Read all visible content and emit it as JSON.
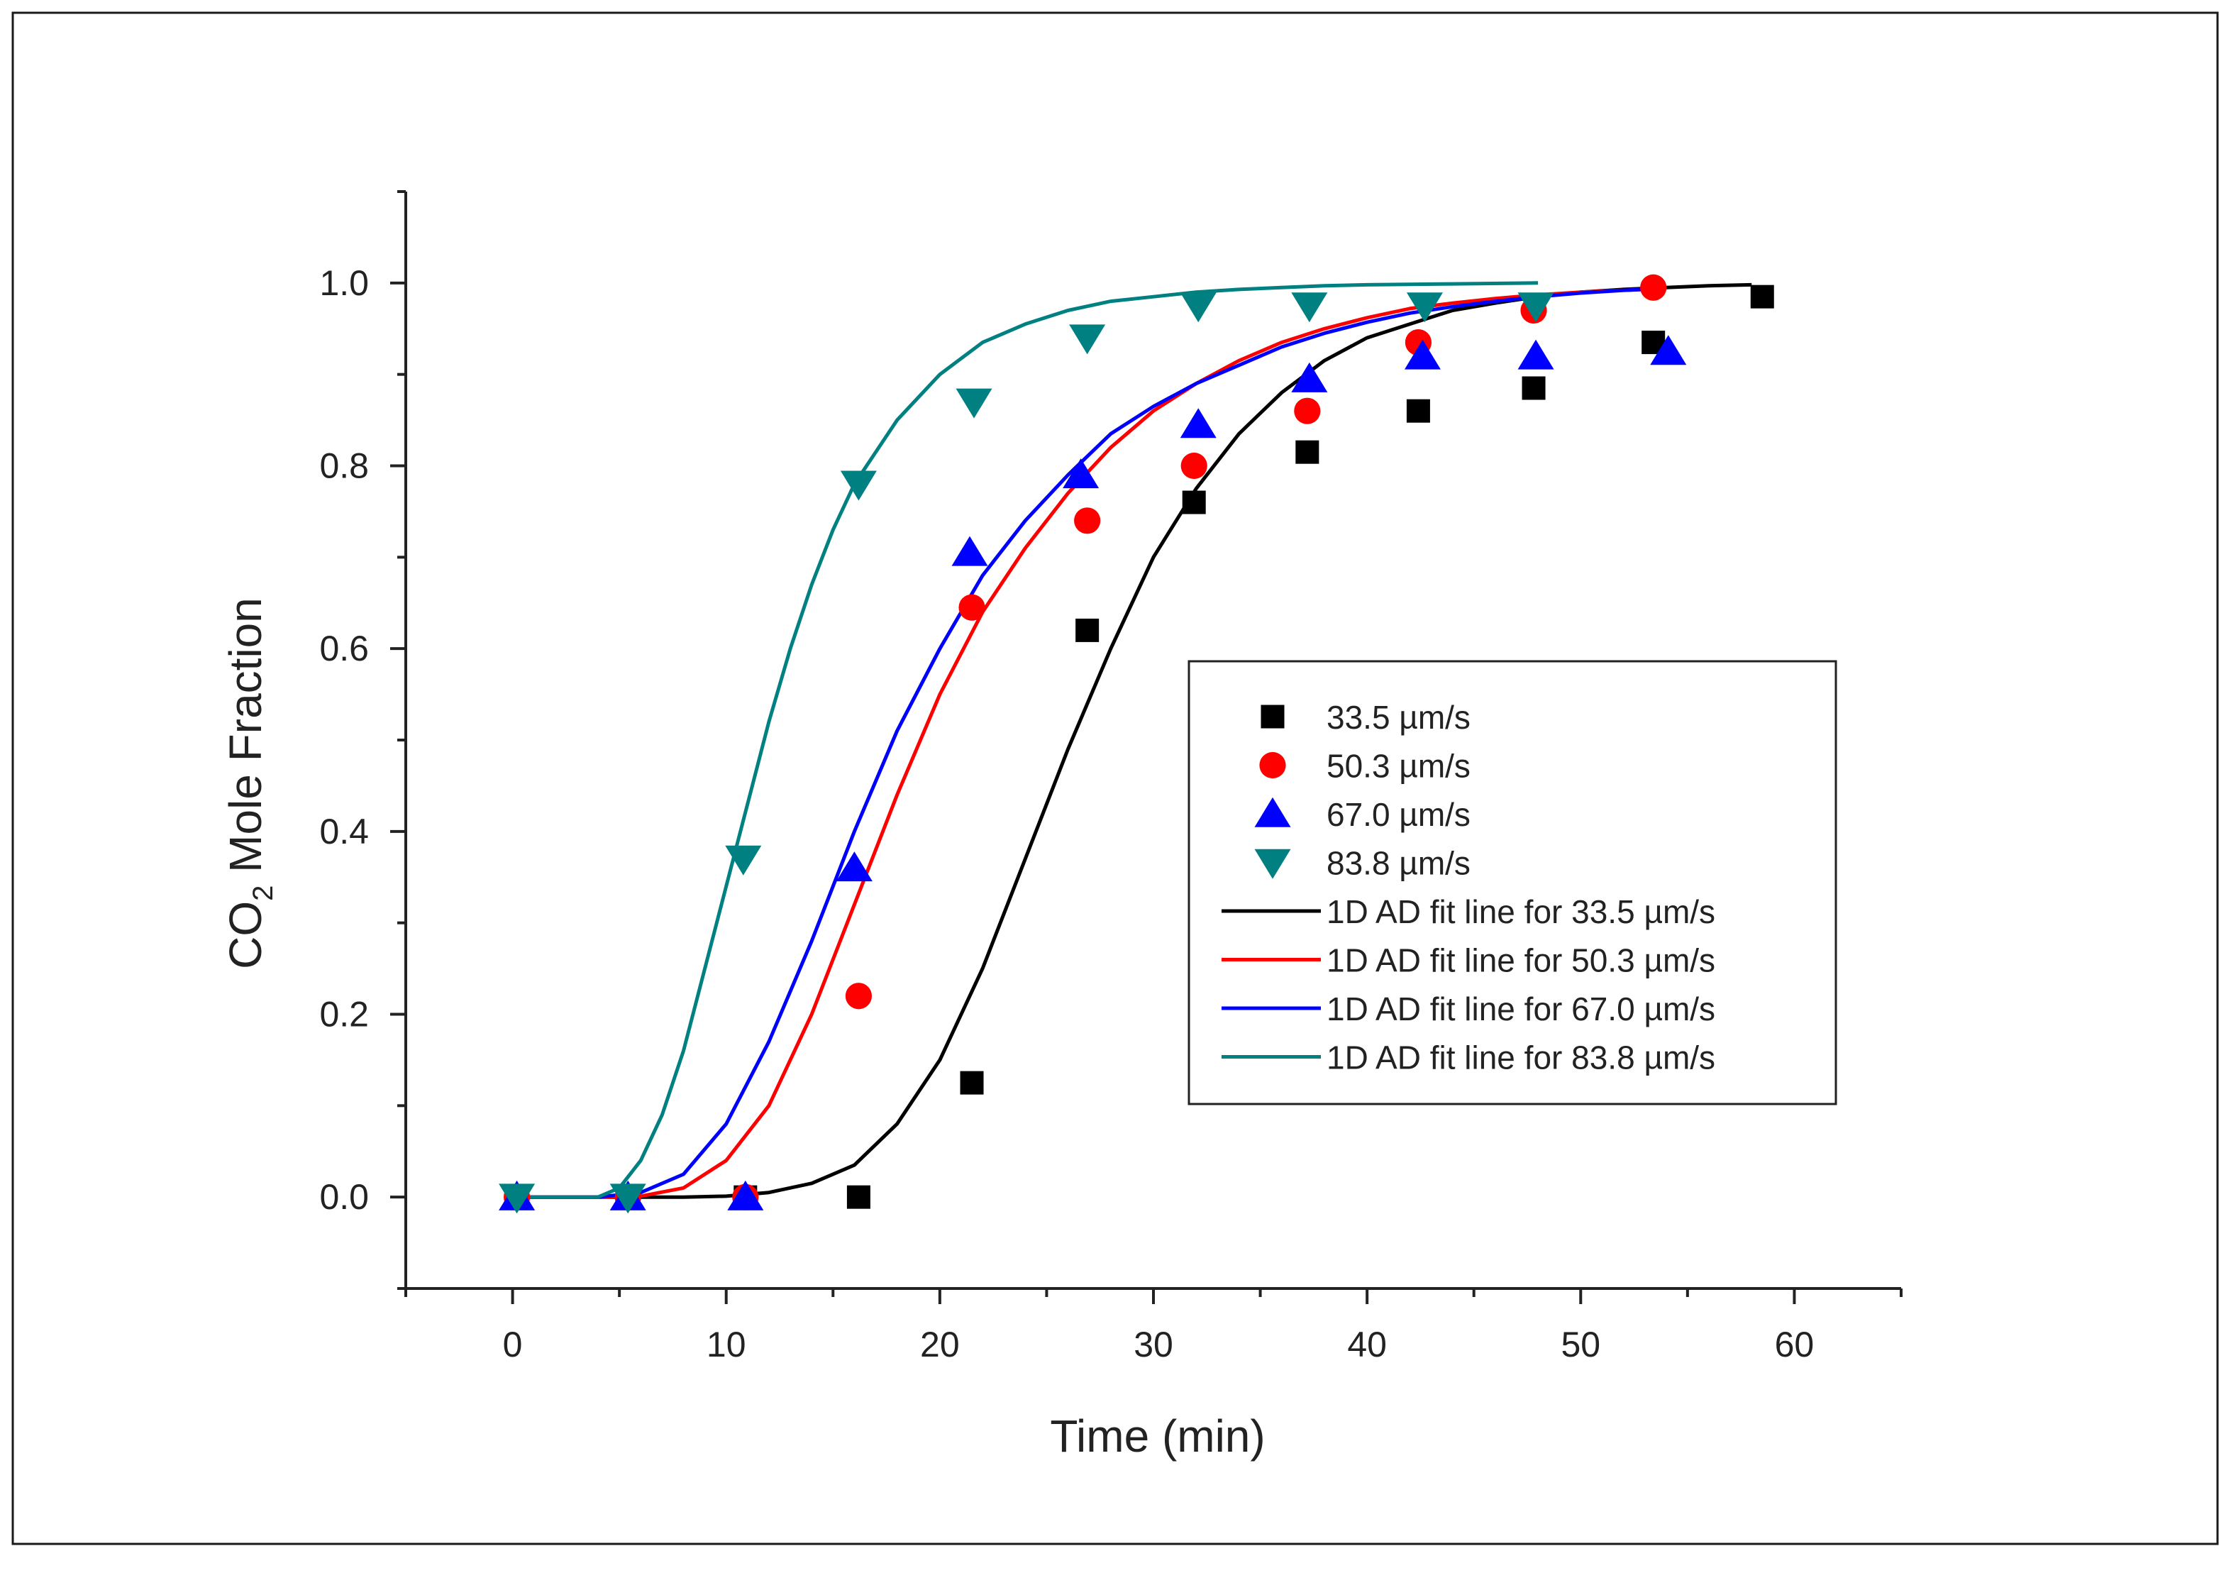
{
  "chart_data": {
    "type": "scatter",
    "title": "",
    "xlabel": "Time (min)",
    "ylabel_main": "CO",
    "ylabel_sub": "2",
    "ylabel_rest": " Mole Fraction",
    "xlim": [
      -5,
      65
    ],
    "ylim": [
      -0.1,
      1.1
    ],
    "x_ticks": [
      0,
      10,
      20,
      30,
      40,
      50,
      60
    ],
    "x_tick_labels": [
      "0",
      "10",
      "20",
      "30",
      "40",
      "50",
      "60"
    ],
    "y_ticks": [
      0.0,
      0.2,
      0.4,
      0.6,
      0.8,
      1.0
    ],
    "y_tick_labels": [
      "0.0",
      "0.2",
      "0.4",
      "0.6",
      "0.8",
      "1.0"
    ],
    "grid": false,
    "legend_position": "center-right",
    "series": [
      {
        "name": "33.5 µm/s",
        "marker": "square",
        "color": "#000000",
        "x": [
          0.2,
          5.4,
          10.9,
          16.2,
          21.5,
          26.9,
          31.9,
          37.2,
          42.4,
          47.8,
          53.4,
          58.5
        ],
        "y": [
          0.0,
          0.0,
          0.0,
          0.0,
          0.125,
          0.62,
          0.76,
          0.815,
          0.86,
          0.885,
          0.935,
          0.985
        ]
      },
      {
        "name": "50.3 µm/s",
        "marker": "circle",
        "color": "#ff0000",
        "x": [
          0.2,
          5.4,
          10.9,
          16.2,
          21.5,
          26.9,
          31.9,
          37.2,
          42.4,
          47.8,
          53.4
        ],
        "y": [
          0.0,
          0.0,
          0.0,
          0.22,
          0.645,
          0.74,
          0.8,
          0.86,
          0.935,
          0.97,
          0.995
        ]
      },
      {
        "name": "67.0 µm/s",
        "marker": "triangle-up",
        "color": "#0000ff",
        "x": [
          0.2,
          5.4,
          10.9,
          16.0,
          21.4,
          26.6,
          32.1,
          37.3,
          42.6,
          47.9,
          54.1
        ],
        "y": [
          0.0,
          0.0,
          0.0,
          0.36,
          0.705,
          0.79,
          0.845,
          0.895,
          0.92,
          0.92,
          0.925
        ]
      },
      {
        "name": "83.8 µm/s",
        "marker": "triangle-down",
        "color": "#008080",
        "x": [
          0.2,
          5.4,
          10.8,
          16.2,
          21.6,
          26.9,
          32.1,
          37.3,
          42.7,
          47.9
        ],
        "y": [
          0.0,
          0.0,
          0.37,
          0.78,
          0.87,
          0.94,
          0.975,
          0.975,
          0.975,
          0.975
        ]
      }
    ],
    "fit_lines": [
      {
        "name": "1D AD fit line for 33.5 µm/s",
        "color": "#000000",
        "x": [
          0,
          8,
          10,
          12,
          14,
          16,
          18,
          20,
          22,
          24,
          26,
          28,
          30,
          32,
          34,
          36,
          38,
          40,
          42,
          44,
          46,
          48,
          50,
          52,
          54,
          56,
          58
        ],
        "y": [
          0,
          0,
          0.001,
          0.005,
          0.015,
          0.035,
          0.08,
          0.15,
          0.25,
          0.37,
          0.49,
          0.6,
          0.7,
          0.775,
          0.835,
          0.88,
          0.915,
          0.94,
          0.955,
          0.97,
          0.978,
          0.985,
          0.99,
          0.993,
          0.995,
          0.997,
          0.998
        ]
      },
      {
        "name": "1D AD fit line for 50.3 µm/s",
        "color": "#ff0000",
        "x": [
          0,
          4,
          6,
          8,
          10,
          12,
          14,
          16,
          18,
          20,
          22,
          24,
          26,
          28,
          30,
          32,
          34,
          36,
          38,
          40,
          42,
          44,
          46,
          48,
          50,
          52,
          54
        ],
        "y": [
          0,
          0,
          0.001,
          0.01,
          0.04,
          0.1,
          0.2,
          0.32,
          0.44,
          0.55,
          0.64,
          0.71,
          0.77,
          0.82,
          0.86,
          0.89,
          0.915,
          0.935,
          0.95,
          0.962,
          0.972,
          0.978,
          0.983,
          0.987,
          0.99,
          0.992,
          0.994
        ]
      },
      {
        "name": "1D AD fit line for 67.0 µm/s",
        "color": "#0000ff",
        "x": [
          0,
          4,
          6,
          8,
          10,
          12,
          14,
          16,
          18,
          20,
          22,
          24,
          26,
          28,
          30,
          32,
          34,
          36,
          38,
          40,
          42,
          44,
          46,
          48,
          50,
          52,
          54
        ],
        "y": [
          0,
          0,
          0.005,
          0.025,
          0.08,
          0.17,
          0.28,
          0.4,
          0.51,
          0.6,
          0.68,
          0.74,
          0.79,
          0.835,
          0.865,
          0.89,
          0.91,
          0.93,
          0.945,
          0.957,
          0.967,
          0.974,
          0.98,
          0.985,
          0.989,
          0.992,
          0.994
        ]
      },
      {
        "name": "1D AD fit line for 83.8 µm/s",
        "color": "#008080",
        "x": [
          0,
          4,
          5,
          6,
          7,
          8,
          9,
          10,
          11,
          12,
          13,
          14,
          15,
          16,
          18,
          20,
          22,
          24,
          26,
          28,
          30,
          32,
          34,
          36,
          38,
          40,
          44,
          48
        ],
        "y": [
          0,
          0,
          0.01,
          0.04,
          0.09,
          0.16,
          0.25,
          0.34,
          0.43,
          0.52,
          0.6,
          0.67,
          0.73,
          0.78,
          0.85,
          0.9,
          0.935,
          0.955,
          0.97,
          0.98,
          0.985,
          0.99,
          0.993,
          0.995,
          0.997,
          0.998,
          0.999,
          1.0
        ]
      }
    ]
  }
}
